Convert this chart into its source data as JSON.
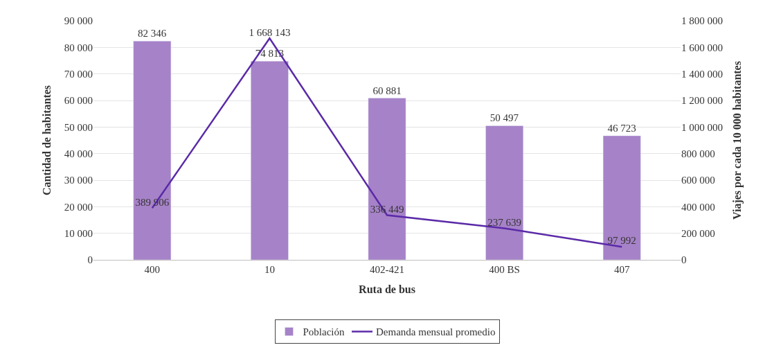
{
  "chart_data": {
    "type": "bar",
    "xlabel": "Ruta de bus",
    "ylabel": "Cantidad de habitantes",
    "y2label": "Viajes por cada 10 000 habitantes",
    "categories": [
      "400",
      "10",
      "402-421",
      "400 BS",
      "407"
    ],
    "series": [
      {
        "name": "Población",
        "color": "#a682c8",
        "values": [
          82346,
          74813,
          60881,
          50497,
          46723
        ],
        "value_labels": [
          "82 346",
          "74 813",
          "60 881",
          "50 497",
          "46 723"
        ]
      },
      {
        "name": "Demanda mensual promedio",
        "type": "line",
        "axis": "y2",
        "color": "#5a2aa8",
        "values": [
          389906,
          1668143,
          336449,
          237639,
          97992
        ],
        "value_labels": [
          "389 906",
          "1 668 143",
          "336 449",
          "237 639",
          "97 992"
        ]
      }
    ],
    "ylim": [
      0,
      90000
    ],
    "yticks": [
      {
        "value": 0,
        "label": "0"
      },
      {
        "value": 10000,
        "label": "10 000"
      },
      {
        "value": 20000,
        "label": "20 000"
      },
      {
        "value": 30000,
        "label": "30 000"
      },
      {
        "value": 40000,
        "label": "40 000"
      },
      {
        "value": 50000,
        "label": "50 000"
      },
      {
        "value": 60000,
        "label": "60 000"
      },
      {
        "value": 70000,
        "label": "70 000"
      },
      {
        "value": 80000,
        "label": "80 000"
      },
      {
        "value": 90000,
        "label": "90 000"
      }
    ],
    "y2lim": [
      0,
      1800000
    ],
    "y2ticks": [
      {
        "value": 0,
        "label": "0"
      },
      {
        "value": 200000,
        "label": "200 000"
      },
      {
        "value": 400000,
        "label": "400 000"
      },
      {
        "value": 600000,
        "label": "600 000"
      },
      {
        "value": 800000,
        "label": "800 000"
      },
      {
        "value": 1000000,
        "label": "1 000 000"
      },
      {
        "value": 1200000,
        "label": "1 200 000"
      },
      {
        "value": 1400000,
        "label": "1 400 000"
      },
      {
        "value": 1600000,
        "label": "1 600 000"
      },
      {
        "value": 1800000,
        "label": "1 800 000"
      }
    ],
    "grid": "y",
    "legend": "bottom",
    "marker": "none",
    "line_style": "solid"
  }
}
